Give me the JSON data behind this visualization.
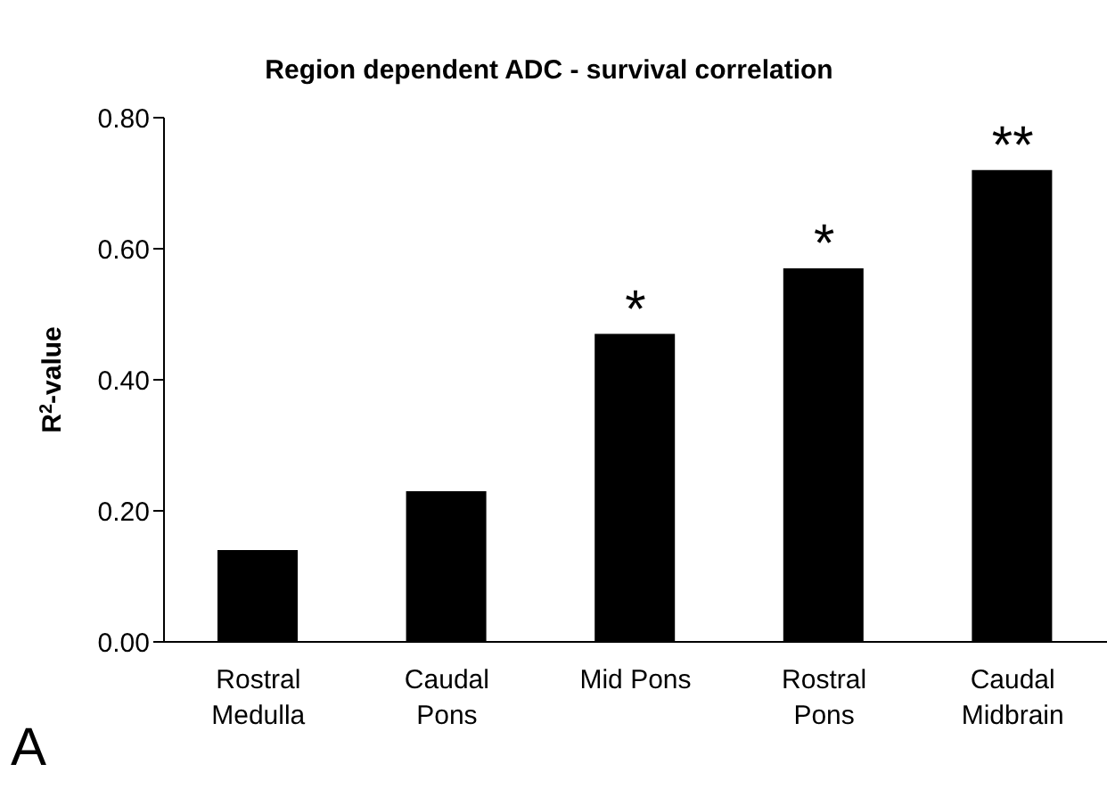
{
  "chart_data": {
    "type": "bar",
    "title": "Region dependent ADC - survival correlation",
    "ylabel": "R$^{2}$-value",
    "categories": [
      "Rostral\nMedulla",
      "Caudal\nPons",
      "Mid Pons",
      "Rostral\nPons",
      "Caudal\nMidbrain"
    ],
    "values": [
      0.14,
      0.23,
      0.47,
      0.57,
      0.72
    ],
    "color": "#000000",
    "ylim": [
      0,
      0.8
    ],
    "yticks": [
      {
        "value": 0,
        "label": "0.00"
      },
      {
        "value": 0.2,
        "label": "0.20"
      },
      {
        "value": 0.4,
        "label": "0.40"
      },
      {
        "value": 0.6,
        "label": "0.60"
      },
      {
        "value": 0.8,
        "label": "0.80"
      }
    ],
    "grid": false,
    "legend": false,
    "annotations": [
      {
        "text": "*",
        "x": "Mid Pons",
        "y": 0.47
      },
      {
        "text": "*",
        "x": "Rostral\nPons",
        "y": 0.57
      },
      {
        "text": "**",
        "x": "Caudal\nMidbrain",
        "y": 0.72
      },
      "A"
    ]
  }
}
